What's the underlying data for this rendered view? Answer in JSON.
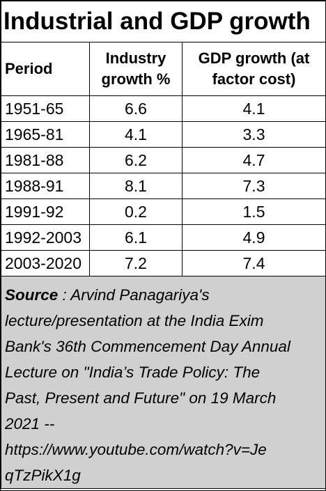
{
  "title": "Industrial and GDP growth",
  "headers": {
    "period": "Period",
    "industry": [
      "Industry",
      "growth %"
    ],
    "gdp": [
      "GDP growth (at",
      "factor cost)"
    ]
  },
  "rows": [
    {
      "period": "1951-65",
      "industry": "6.6",
      "gdp": "4.1"
    },
    {
      "period": "1965-81",
      "industry": "4.1",
      "gdp": "3.3"
    },
    {
      "period": "1981-88",
      "industry": "6.2",
      "gdp": "4.7"
    },
    {
      "period": "1988-91",
      "industry": "8.1",
      "gdp": "7.3"
    },
    {
      "period": "1991-92",
      "industry": "0.2",
      "gdp": "1.5"
    },
    {
      "period": "1992-2003",
      "industry": "6.1",
      "gdp": "4.9"
    },
    {
      "period": "2003-2020",
      "industry": "7.2",
      "gdp": "7.4"
    }
  ],
  "source": {
    "label": "Source",
    "lines": [
      " : Arvind Panagariya's",
      "lecture/presentation at the India Exim",
      "Bank's 36th Commencement Day Annual",
      "Lecture on \"India’s Trade Policy: The",
      "Past, Present and Future\" on 19 March",
      "2021 --",
      "https://www.youtube.com/watch?v=Je",
      "qTzPikX1g"
    ]
  }
}
